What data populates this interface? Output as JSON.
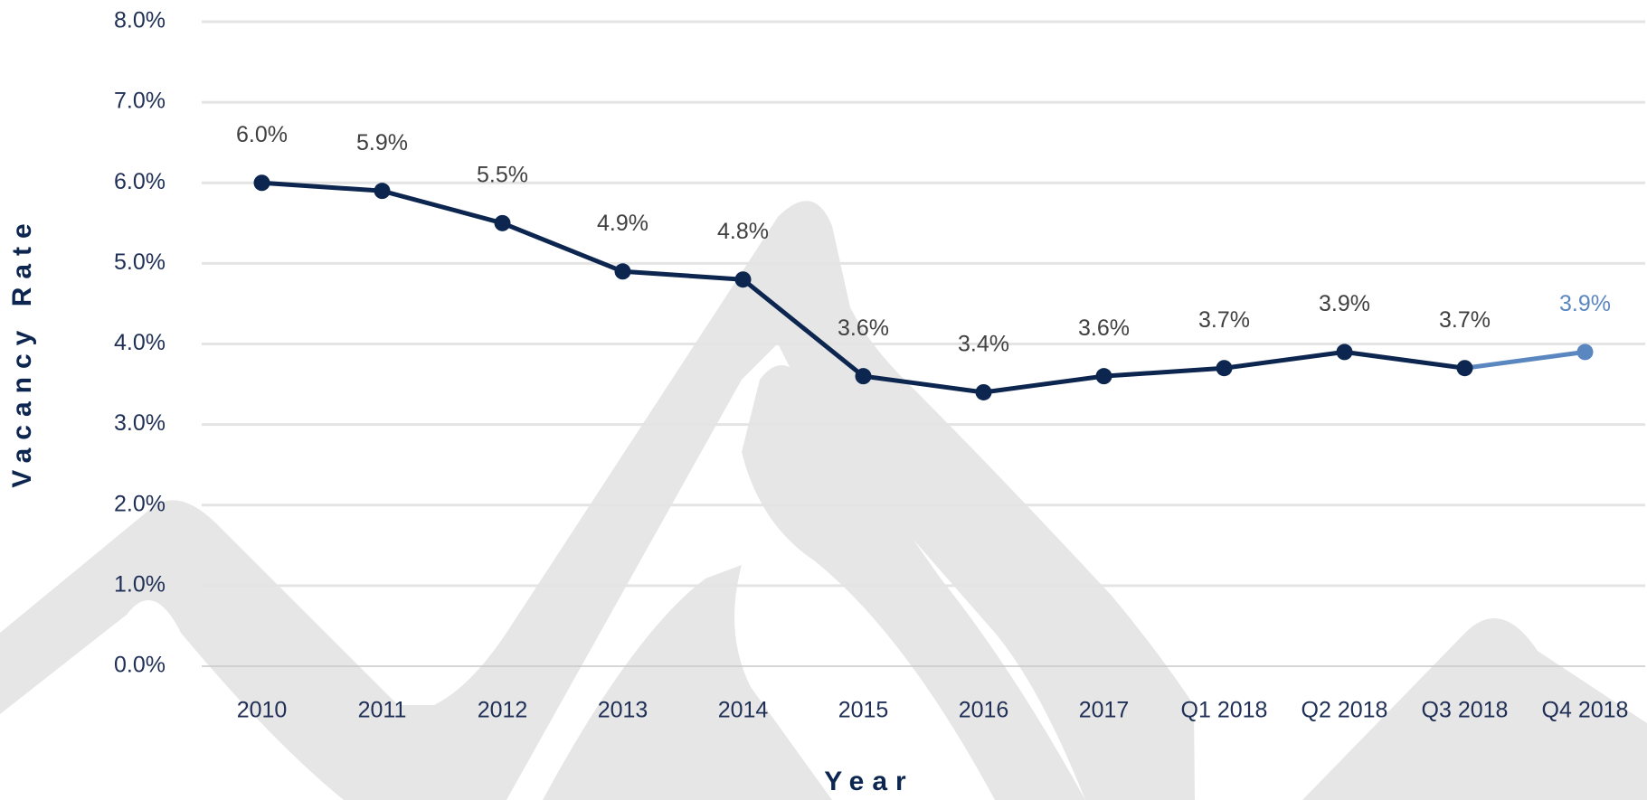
{
  "chart_data": {
    "type": "line",
    "x_label": "Year",
    "y_label": "Vacancy Rate",
    "categories": [
      "2010",
      "2011",
      "2012",
      "2013",
      "2014",
      "2015",
      "2016",
      "2017",
      "Q1 2018",
      "Q2 2018",
      "Q3 2018",
      "Q4 2018"
    ],
    "series": [
      {
        "name": "Vacancy Rate",
        "color": "#0d2650",
        "values": [
          6.0,
          5.9,
          5.5,
          4.9,
          4.8,
          3.6,
          3.4,
          3.6,
          3.7,
          3.9,
          3.7,
          3.9
        ],
        "value_labels": [
          "6.0%",
          "5.9%",
          "5.5%",
          "4.9%",
          "4.8%",
          "3.6%",
          "3.4%",
          "3.6%",
          "3.7%",
          "3.9%",
          "3.7%",
          "3.9%"
        ],
        "point_colors": [
          "#0d2650",
          "#0d2650",
          "#0d2650",
          "#0d2650",
          "#0d2650",
          "#0d2650",
          "#0d2650",
          "#0d2650",
          "#0d2650",
          "#0d2650",
          "#0d2650",
          "#5b87c0"
        ]
      }
    ],
    "ylim": [
      0,
      8
    ],
    "yticks": [
      {
        "value": 0,
        "label": "0.0%"
      },
      {
        "value": 1,
        "label": "1.0%"
      },
      {
        "value": 2,
        "label": "2.0%"
      },
      {
        "value": 3,
        "label": "3.0%"
      },
      {
        "value": 4,
        "label": "4.0%"
      },
      {
        "value": 5,
        "label": "5.0%"
      },
      {
        "value": 6,
        "label": "6.0%"
      },
      {
        "value": 7,
        "label": "7.0%"
      },
      {
        "value": 8,
        "label": "8.0%"
      }
    ],
    "grid": true
  }
}
